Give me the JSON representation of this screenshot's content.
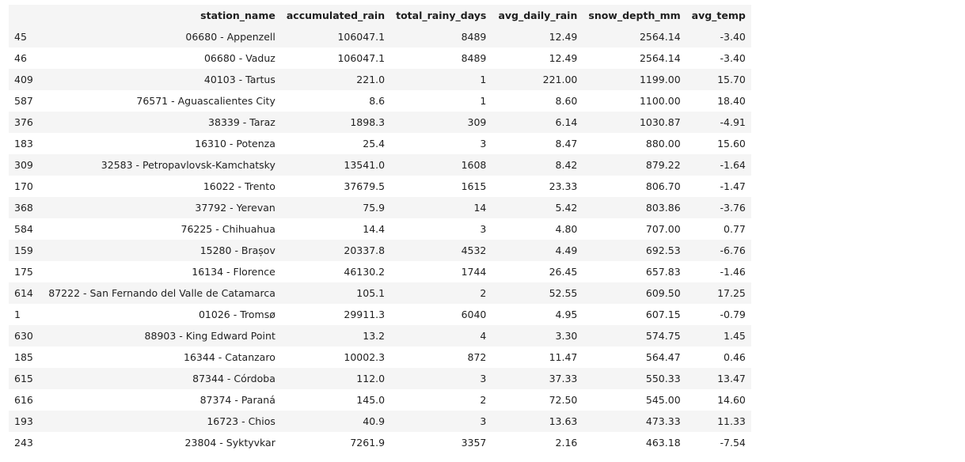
{
  "table": {
    "columns": [
      "station_name",
      "accumulated_rain",
      "total_rainy_days",
      "avg_daily_rain",
      "snow_depth_mm",
      "avg_temp"
    ],
    "rows": [
      {
        "index": "45",
        "station_name": "06680 - Appenzell",
        "accumulated_rain": "106047.1",
        "total_rainy_days": "8489",
        "avg_daily_rain": "12.49",
        "snow_depth_mm": "2564.14",
        "avg_temp": "-3.40"
      },
      {
        "index": "46",
        "station_name": "06680 - Vaduz",
        "accumulated_rain": "106047.1",
        "total_rainy_days": "8489",
        "avg_daily_rain": "12.49",
        "snow_depth_mm": "2564.14",
        "avg_temp": "-3.40"
      },
      {
        "index": "409",
        "station_name": "40103 - Tartus",
        "accumulated_rain": "221.0",
        "total_rainy_days": "1",
        "avg_daily_rain": "221.00",
        "snow_depth_mm": "1199.00",
        "avg_temp": "15.70"
      },
      {
        "index": "587",
        "station_name": "76571 - Aguascalientes City",
        "accumulated_rain": "8.6",
        "total_rainy_days": "1",
        "avg_daily_rain": "8.60",
        "snow_depth_mm": "1100.00",
        "avg_temp": "18.40"
      },
      {
        "index": "376",
        "station_name": "38339 - Taraz",
        "accumulated_rain": "1898.3",
        "total_rainy_days": "309",
        "avg_daily_rain": "6.14",
        "snow_depth_mm": "1030.87",
        "avg_temp": "-4.91"
      },
      {
        "index": "183",
        "station_name": "16310 - Potenza",
        "accumulated_rain": "25.4",
        "total_rainy_days": "3",
        "avg_daily_rain": "8.47",
        "snow_depth_mm": "880.00",
        "avg_temp": "15.60"
      },
      {
        "index": "309",
        "station_name": "32583 - Petropavlovsk-Kamchatsky",
        "accumulated_rain": "13541.0",
        "total_rainy_days": "1608",
        "avg_daily_rain": "8.42",
        "snow_depth_mm": "879.22",
        "avg_temp": "-1.64"
      },
      {
        "index": "170",
        "station_name": "16022 - Trento",
        "accumulated_rain": "37679.5",
        "total_rainy_days": "1615",
        "avg_daily_rain": "23.33",
        "snow_depth_mm": "806.70",
        "avg_temp": "-1.47"
      },
      {
        "index": "368",
        "station_name": "37792 - Yerevan",
        "accumulated_rain": "75.9",
        "total_rainy_days": "14",
        "avg_daily_rain": "5.42",
        "snow_depth_mm": "803.86",
        "avg_temp": "-3.76"
      },
      {
        "index": "584",
        "station_name": "76225 - Chihuahua",
        "accumulated_rain": "14.4",
        "total_rainy_days": "3",
        "avg_daily_rain": "4.80",
        "snow_depth_mm": "707.00",
        "avg_temp": "0.77"
      },
      {
        "index": "159",
        "station_name": "15280 - Brașov",
        "accumulated_rain": "20337.8",
        "total_rainy_days": "4532",
        "avg_daily_rain": "4.49",
        "snow_depth_mm": "692.53",
        "avg_temp": "-6.76"
      },
      {
        "index": "175",
        "station_name": "16134 - Florence",
        "accumulated_rain": "46130.2",
        "total_rainy_days": "1744",
        "avg_daily_rain": "26.45",
        "snow_depth_mm": "657.83",
        "avg_temp": "-1.46"
      },
      {
        "index": "614",
        "station_name": "87222 - San Fernando del Valle de Catamarca",
        "accumulated_rain": "105.1",
        "total_rainy_days": "2",
        "avg_daily_rain": "52.55",
        "snow_depth_mm": "609.50",
        "avg_temp": "17.25"
      },
      {
        "index": "1",
        "station_name": "01026 - Tromsø",
        "accumulated_rain": "29911.3",
        "total_rainy_days": "6040",
        "avg_daily_rain": "4.95",
        "snow_depth_mm": "607.15",
        "avg_temp": "-0.79"
      },
      {
        "index": "630",
        "station_name": "88903 - King Edward Point",
        "accumulated_rain": "13.2",
        "total_rainy_days": "4",
        "avg_daily_rain": "3.30",
        "snow_depth_mm": "574.75",
        "avg_temp": "1.45"
      },
      {
        "index": "185",
        "station_name": "16344 - Catanzaro",
        "accumulated_rain": "10002.3",
        "total_rainy_days": "872",
        "avg_daily_rain": "11.47",
        "snow_depth_mm": "564.47",
        "avg_temp": "0.46"
      },
      {
        "index": "615",
        "station_name": "87344 - Córdoba",
        "accumulated_rain": "112.0",
        "total_rainy_days": "3",
        "avg_daily_rain": "37.33",
        "snow_depth_mm": "550.33",
        "avg_temp": "13.47"
      },
      {
        "index": "616",
        "station_name": "87374 - Paraná",
        "accumulated_rain": "145.0",
        "total_rainy_days": "2",
        "avg_daily_rain": "72.50",
        "snow_depth_mm": "545.00",
        "avg_temp": "14.60"
      },
      {
        "index": "193",
        "station_name": "16723 - Chios",
        "accumulated_rain": "40.9",
        "total_rainy_days": "3",
        "avg_daily_rain": "13.63",
        "snow_depth_mm": "473.33",
        "avg_temp": "11.33"
      },
      {
        "index": "243",
        "station_name": "23804 - Syktyvkar",
        "accumulated_rain": "7261.9",
        "total_rainy_days": "3357",
        "avg_daily_rain": "2.16",
        "snow_depth_mm": "463.18",
        "avg_temp": "-7.54"
      }
    ]
  }
}
